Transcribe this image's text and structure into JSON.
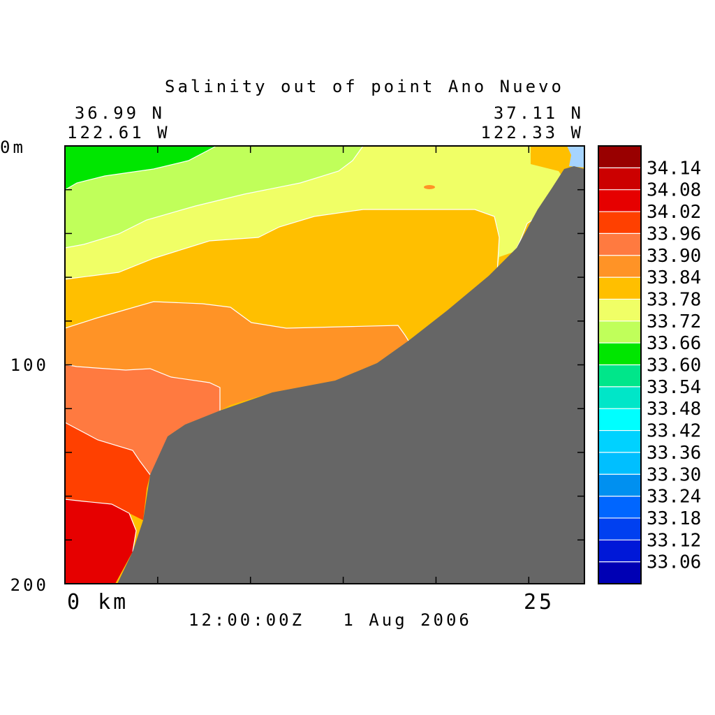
{
  "chart_data": {
    "type": "heatmap",
    "title": "Salinity out of point Ano Nuevo",
    "corner_labels": {
      "left_lat": "36.99 N",
      "left_lon": "122.61 W",
      "right_lat": "37.11 N",
      "right_lon": "122.33 W"
    },
    "y_axis": {
      "top_label": "0m",
      "tick_labels": [
        "100",
        "200"
      ],
      "range": [
        0,
        200
      ],
      "inverted": true
    },
    "x_axis": {
      "tick_labels": [
        "0 km",
        "25"
      ],
      "range": [
        0,
        28
      ]
    },
    "timestamp": "12:00:00Z   1 Aug 2006",
    "colorbar": {
      "levels": [
        "34.14",
        "34.08",
        "34.02",
        "33.96",
        "33.90",
        "33.84",
        "33.78",
        "33.72",
        "33.66",
        "33.60",
        "33.54",
        "33.48",
        "33.42",
        "33.36",
        "33.30",
        "33.24",
        "33.18",
        "33.12",
        "33.06"
      ],
      "colors": [
        "#990000",
        "#cc0000",
        "#e60000",
        "#ff4000",
        "#ff7a40",
        "#ff9326",
        "#ffbf00",
        "#f0ff66",
        "#c0ff5a",
        "#00e600",
        "#00e68a",
        "#00e6c8",
        "#00ffff",
        "#00d2ff",
        "#00bfff",
        "#0090f0",
        "#0066ff",
        "#0040f0",
        "#0018d8",
        "#0000b4"
      ]
    },
    "land_color": "#666666",
    "fields": {
      "green": "#00e600",
      "light_green": "#c0ff5a",
      "yellow": "#f0ff66",
      "orange_yellow": "#ffbf00",
      "orange": "#ff9326",
      "salmon": "#ff7a40",
      "red_orange": "#ff4000",
      "red": "#e60000",
      "light_blue": "#a6d4ff"
    }
  }
}
